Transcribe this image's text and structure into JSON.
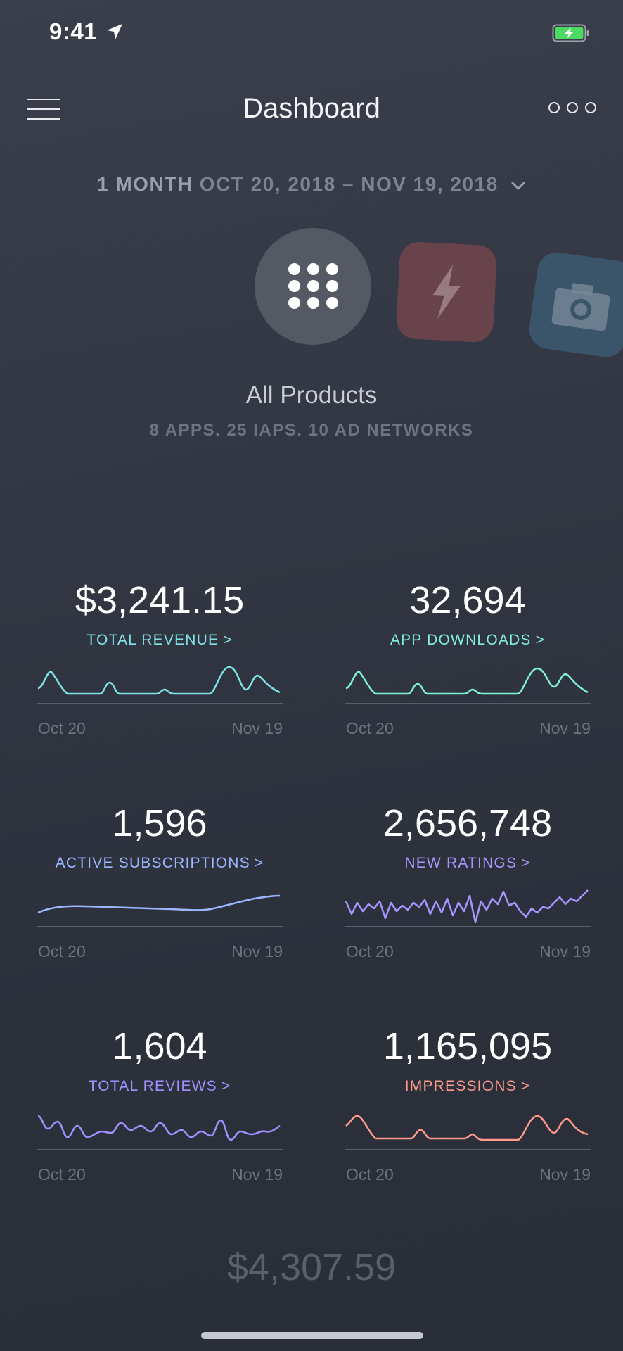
{
  "status_bar": {
    "time": "9:41",
    "location_icon": "location-arrow-icon",
    "battery_icon": "battery-charging-icon",
    "battery_color": "#4cd964"
  },
  "nav": {
    "title": "Dashboard",
    "menu_icon": "hamburger-menu-icon",
    "more_icon": "more-options-icon"
  },
  "date_range": {
    "period": "1 MONTH",
    "dates": "OCT 20, 2018 – NOV 19, 2018",
    "dropdown_icon": "chevron-down-icon"
  },
  "products": {
    "selected_icon": "grid-dots-icon",
    "other_app_icons": [
      "lightning-app-icon",
      "camera-app-icon"
    ],
    "title": "All Products",
    "subtitle": "8 APPS. 25 IAPS. 10 AD NETWORKS"
  },
  "metrics": [
    {
      "value": "$3,241.15",
      "label": "TOTAL REVENUE",
      "arrow": ">",
      "color": "#7ee3e6",
      "start": "Oct 20",
      "end": "Nov 19"
    },
    {
      "value": "32,694",
      "label": "APP DOWNLOADS",
      "arrow": ">",
      "color": "#7ff0d6",
      "start": "Oct 20",
      "end": "Nov 19"
    },
    {
      "value": "1,596",
      "label": "ACTIVE SUBSCRIPTIONS",
      "arrow": ">",
      "color": "#9ab7ff",
      "start": "Oct 20",
      "end": "Nov 19"
    },
    {
      "value": "2,656,748",
      "label": "NEW RATINGS",
      "arrow": ">",
      "color": "#a796ff",
      "start": "Oct 20",
      "end": "Nov 19"
    },
    {
      "value": "1,604",
      "label": "TOTAL REVIEWS",
      "arrow": ">",
      "color": "#9f92ff",
      "start": "Oct 20",
      "end": "Nov 19"
    },
    {
      "value": "1,165,095",
      "label": "IMPRESSIONS",
      "arrow": ">",
      "color": "#ff9a8d",
      "start": "Oct 20",
      "end": "Nov 19"
    }
  ],
  "next_metric_value": "$4,307.59"
}
